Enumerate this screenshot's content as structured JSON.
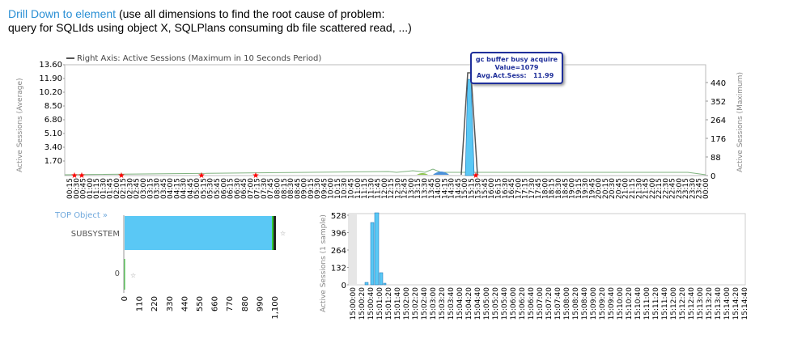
{
  "header": {
    "link_text": "Drill Down to element",
    "rest_line1": " (use all dimensions to find the root cause of problem:",
    "line2": "query for SQLIds using object X, SQLPlans consuming db file scattered read, ...)"
  },
  "colors": {
    "accent": "#2a8fd4",
    "bar": "#5ac8f5",
    "line": "#555555",
    "marker": "#ff0000",
    "green": "#33cc33"
  },
  "tooltip": {
    "title": "gc buffer busy acquire",
    "value_text": "Value=1079",
    "sess_label": "Avg.Act.Sess:",
    "sess_value": "11.99"
  },
  "main_chart": {
    "legend": "Right Axis: Active Sessions (Maximum in 10 Seconds Period)",
    "left_axis_label": "Active Sessions (Average)",
    "right_axis_label": "Active Sessions (Maximum)",
    "left_ticks": [
      "13.60",
      "11.90",
      "10.20",
      "8.50",
      "6.80",
      "5.10",
      "3.40",
      "1.70"
    ],
    "right_ticks": [
      "440",
      "352",
      "264",
      "176",
      "88",
      "0"
    ],
    "x_labels": [
      "00:15",
      "00:30",
      "00:45",
      "01:00",
      "01:15",
      "01:30",
      "01:45",
      "02:00",
      "02:15",
      "02:30",
      "02:45",
      "03:00",
      "03:15",
      "03:30",
      "03:45",
      "04:00",
      "04:15",
      "04:30",
      "04:45",
      "05:00",
      "05:15",
      "05:30",
      "05:45",
      "06:00",
      "06:15",
      "06:30",
      "06:45",
      "07:00",
      "07:15",
      "07:30",
      "07:45",
      "08:00",
      "08:15",
      "08:30",
      "08:45",
      "09:00",
      "09:15",
      "09:30",
      "09:45",
      "10:00",
      "10:15",
      "10:30",
      "10:45",
      "11:00",
      "11:15",
      "11:30",
      "11:45",
      "12:00",
      "12:15",
      "12:30",
      "12:45",
      "13:00",
      "13:15",
      "13:30",
      "13:45",
      "14:00",
      "14:15",
      "14:30",
      "14:45",
      "15:00",
      "15:15",
      "15:30",
      "15:45",
      "16:00",
      "16:15",
      "16:30",
      "16:45",
      "17:00",
      "17:15",
      "17:30",
      "17:45",
      "18:00",
      "18:15",
      "18:30",
      "18:45",
      "19:00",
      "19:15",
      "19:30",
      "19:45",
      "20:00",
      "20:15",
      "20:30",
      "20:45",
      "21:00",
      "21:15",
      "21:30",
      "21:45",
      "22:00",
      "22:15",
      "22:30",
      "22:45",
      "23:00",
      "23:15",
      "23:30",
      "23:45",
      "00:00"
    ]
  },
  "top_object": {
    "title": "TOP Object »",
    "rows": [
      {
        "label": "SUBSYSTEM",
        "value": 1079
      },
      {
        "label": "0",
        "value": 0
      }
    ],
    "x_ticks": [
      "0",
      "110",
      "220",
      "330",
      "440",
      "550",
      "660",
      "770",
      "880",
      "990",
      "1,100"
    ]
  },
  "detail_chart": {
    "y_axis_label": "Active Sessions (1 sample)",
    "y_ticks": [
      "528",
      "396",
      "264",
      "132",
      "0"
    ],
    "x_labels": [
      "15:00:00",
      "15:00:20",
      "15:00:40",
      "15:01:00",
      "15:01:20",
      "15:01:40",
      "15:02:00",
      "15:02:20",
      "15:02:40",
      "15:03:00",
      "15:03:20",
      "15:03:40",
      "15:04:00",
      "15:04:20",
      "15:04:40",
      "15:05:00",
      "15:05:20",
      "15:05:40",
      "15:06:00",
      "15:06:20",
      "15:06:40",
      "15:07:00",
      "15:07:20",
      "15:07:40",
      "15:08:00",
      "15:08:20",
      "15:08:40",
      "15:09:00",
      "15:09:20",
      "15:09:40",
      "15:10:00",
      "15:10:20",
      "15:10:40",
      "15:11:00",
      "15:11:20",
      "15:11:40",
      "15:12:00",
      "15:12:20",
      "15:12:40",
      "15:13:00",
      "15:13:20",
      "15:13:40",
      "15:14:00",
      "15:14:20",
      "15:14:40"
    ]
  }
}
